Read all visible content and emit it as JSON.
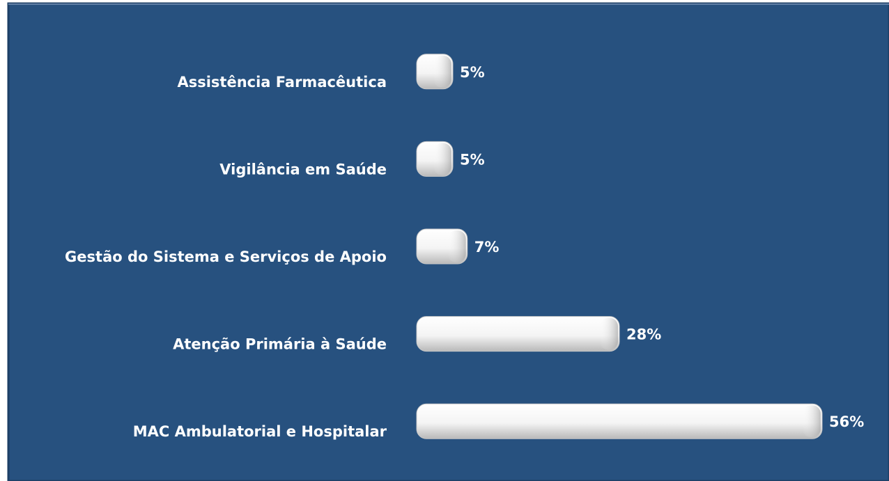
{
  "chart_data": {
    "type": "bar",
    "categories": [
      "Assistência Farmacêutica",
      "Vigilância em Saúde",
      "Gestão do Sistema e Serviços de Apoio",
      "Atenção Primária à Saúde",
      "MAC Ambulatorial e Hospitalar"
    ],
    "values": [
      5,
      5,
      7,
      28,
      56
    ],
    "value_labels": [
      "5%",
      "5%",
      "7%",
      "28%",
      "56%"
    ],
    "color": "#f2f2f2"
  }
}
